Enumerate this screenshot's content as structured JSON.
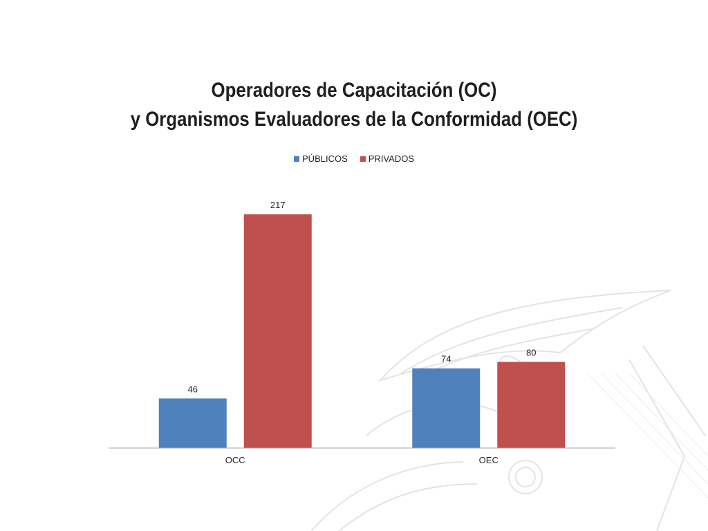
{
  "title_lines": [
    "Operadores de Capacitación (OC)",
    "y Organismos Evaluadores de la Conformidad (OEC)"
  ],
  "colors": {
    "publicos": "#4f81bd",
    "privados": "#c0504d",
    "axis": "#a6a6a6",
    "label_text": "#222222"
  },
  "decorative_background": "ecuador-coat-of-arms-watermark",
  "chart_data": {
    "type": "bar",
    "title": "Operadores de Capacitación (OC) y Organismos Evaluadores de la Conformidad (OEC)",
    "categories": [
      "OCC",
      "OEC"
    ],
    "series": [
      {
        "name": "PÚBLICOS",
        "values": [
          46,
          74
        ]
      },
      {
        "name": "PRIVADOS",
        "values": [
          217,
          80
        ]
      }
    ],
    "ylim": [
      0,
      217
    ],
    "data_labels": true,
    "legend": "top",
    "grid": false,
    "xlabel": "",
    "ylabel": ""
  }
}
